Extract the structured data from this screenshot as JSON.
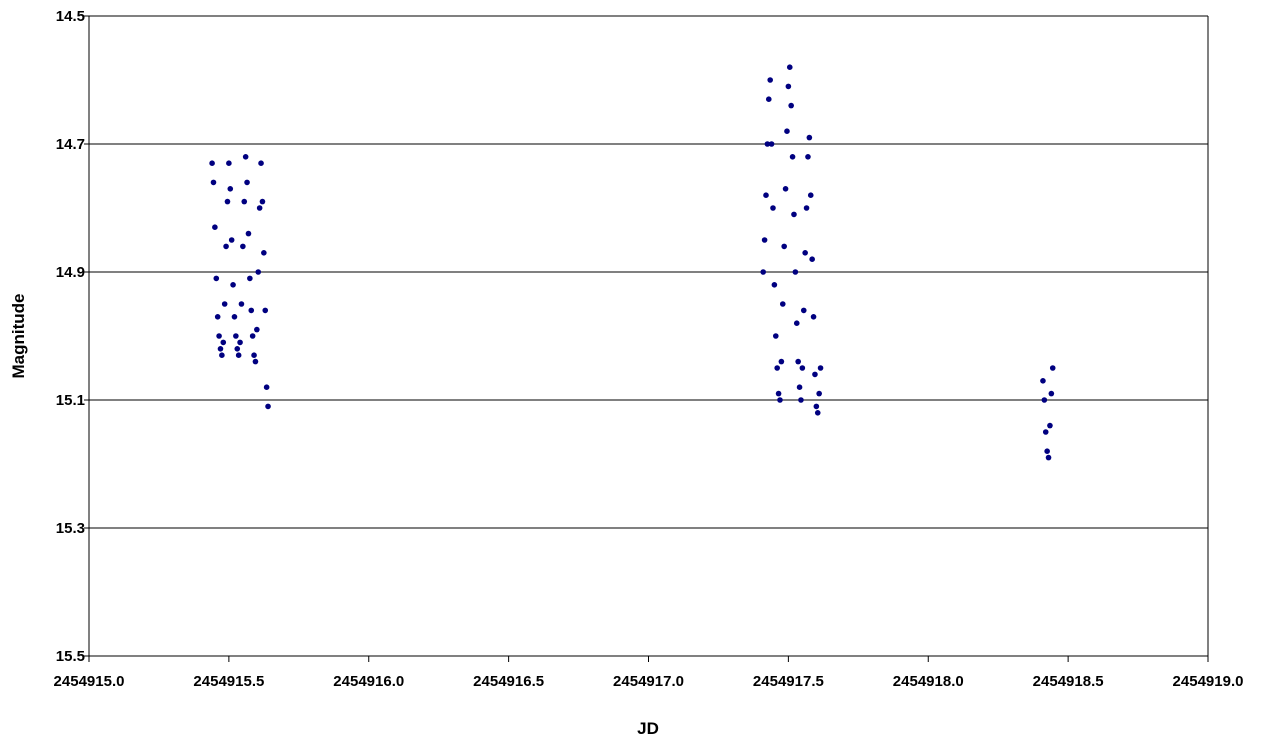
{
  "chart_data": {
    "type": "scatter",
    "title": "",
    "xlabel": "JD",
    "ylabel": "Magnitude",
    "xlim": [
      2454915.0,
      2454919.0
    ],
    "ylim": [
      14.5,
      15.5
    ],
    "y_inverted": true,
    "x_ticks": [
      2454915.0,
      2454915.5,
      2454916.0,
      2454916.5,
      2454917.0,
      2454917.5,
      2454918.0,
      2454918.5,
      2454919.0
    ],
    "x_tick_labels": [
      "2454915.0",
      "2454915.5",
      "2454916.0",
      "2454916.5",
      "2454917.0",
      "2454917.5",
      "2454918.0",
      "2454918.5",
      "2454919.0"
    ],
    "y_ticks": [
      14.5,
      14.7,
      14.9,
      15.1,
      15.3,
      15.5
    ],
    "y_tick_labels": [
      "14.5",
      "14.7",
      "14.9",
      "15.1",
      "15.3",
      "15.5"
    ],
    "grid": "horizontal",
    "legend": "none",
    "marker_color": "#000080",
    "series": [
      {
        "x": [
          2454915.44,
          2454915.445,
          2454915.45,
          2454915.455,
          2454915.46,
          2454915.465,
          2454915.47,
          2454915.475,
          2454915.48,
          2454915.485,
          2454915.49,
          2454915.495,
          2454915.5,
          2454915.505,
          2454915.51,
          2454915.515,
          2454915.52,
          2454915.525,
          2454915.53,
          2454915.535,
          2454915.54,
          2454915.545,
          2454915.55,
          2454915.555,
          2454915.56,
          2454915.565,
          2454915.57,
          2454915.575,
          2454915.58,
          2454915.585,
          2454915.59,
          2454915.595,
          2454915.6,
          2454915.605,
          2454915.61,
          2454915.615,
          2454915.62,
          2454915.625,
          2454915.63,
          2454915.635,
          2454915.64,
          2454917.41,
          2454917.415,
          2454917.42,
          2454917.425,
          2454917.43,
          2454917.435,
          2454917.44,
          2454917.445,
          2454917.45,
          2454917.455,
          2454917.46,
          2454917.465,
          2454917.47,
          2454917.475,
          2454917.48,
          2454917.485,
          2454917.49,
          2454917.495,
          2454917.5,
          2454917.505,
          2454917.51,
          2454917.515,
          2454917.52,
          2454917.525,
          2454917.53,
          2454917.535,
          2454917.54,
          2454917.545,
          2454917.55,
          2454917.555,
          2454917.56,
          2454917.565,
          2454917.57,
          2454917.575,
          2454917.58,
          2454917.585,
          2454917.59,
          2454917.595,
          2454917.6,
          2454917.605,
          2454917.61,
          2454917.615,
          2454918.41,
          2454918.415,
          2454918.42,
          2454918.425,
          2454918.43,
          2454918.435,
          2454918.44,
          2454918.445
        ],
        "y": [
          14.73,
          14.76,
          14.83,
          14.91,
          14.97,
          15.0,
          15.02,
          15.03,
          15.01,
          14.95,
          14.86,
          14.79,
          14.73,
          14.77,
          14.85,
          14.92,
          14.97,
          15.0,
          15.02,
          15.03,
          15.01,
          14.95,
          14.86,
          14.79,
          14.72,
          14.76,
          14.84,
          14.91,
          14.96,
          15.0,
          15.03,
          15.04,
          14.99,
          14.9,
          14.8,
          14.73,
          14.79,
          14.87,
          14.96,
          15.08,
          15.11,
          14.9,
          14.85,
          14.78,
          14.7,
          14.63,
          14.6,
          14.7,
          14.8,
          14.92,
          15.0,
          15.05,
          15.09,
          15.1,
          15.04,
          14.95,
          14.86,
          14.77,
          14.68,
          14.61,
          14.58,
          14.64,
          14.72,
          14.81,
          14.9,
          14.98,
          15.04,
          15.08,
          15.1,
          15.05,
          14.96,
          14.87,
          14.8,
          14.72,
          14.69,
          14.78,
          14.88,
          14.97,
          15.06,
          15.11,
          15.12,
          15.09,
          15.05,
          15.07,
          15.1,
          15.15,
          15.18,
          15.19,
          15.14,
          15.09,
          15.05
        ]
      }
    ]
  }
}
